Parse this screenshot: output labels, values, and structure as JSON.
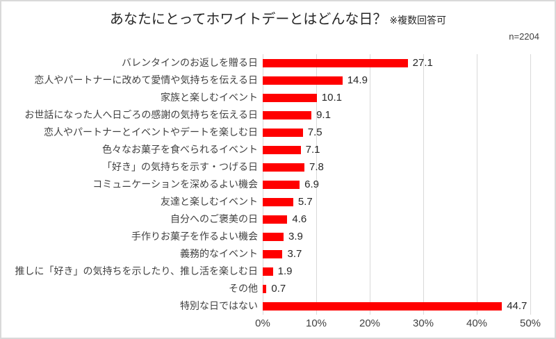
{
  "title": "あなたにとってホワイトデーとはどんな日？",
  "title_note": "※複数回答可",
  "sample_size": "n=2204",
  "colors": {
    "bar": "#ff0000",
    "gridline": "#d9d9d9",
    "label_text": "#404040",
    "value_text": "#262626",
    "border": "#d9d9d9"
  },
  "chart_data": {
    "type": "bar",
    "orientation": "horizontal",
    "title": "あなたにとってホワイトデーとはどんな日？ ※複数回答可",
    "categories": [
      "バレンタインのお返しを贈る日",
      "恋人やパートナーに改めて愛情や気持ちを伝える日",
      "家族と楽しむイベント",
      "お世話になった人へ日ごろの感謝の気持ちを伝える日",
      "恋人やパートナーとイベントやデートを楽しむ日",
      "色々なお菓子を食べられるイベント",
      "「好き」の気持ちを示す・つげる日",
      "コミュニケーションを深めるよい機会",
      "友達と楽しむイベント",
      "自分へのご褒美の日",
      "手作りお菓子を作るよい機会",
      "義務的なイベント",
      "推しに「好き」の気持ちを示したり、推し活を楽しむ日",
      "その他",
      "特別な日ではない"
    ],
    "values": [
      27.1,
      14.9,
      10.1,
      9.1,
      7.5,
      7.1,
      7.8,
      6.9,
      5.7,
      4.6,
      3.9,
      3.7,
      1.9,
      0.7,
      44.7
    ],
    "xlabel": "",
    "ylabel": "",
    "xlim": [
      0,
      50
    ],
    "x_ticks": [
      {
        "label": "0%",
        "value": 0
      },
      {
        "label": "10%",
        "value": 10
      },
      {
        "label": "20%",
        "value": 20
      },
      {
        "label": "30%",
        "value": 30
      },
      {
        "label": "40%",
        "value": 40
      },
      {
        "label": "50%",
        "value": 50
      }
    ],
    "grid": true,
    "value_labels": true,
    "legend": false
  }
}
